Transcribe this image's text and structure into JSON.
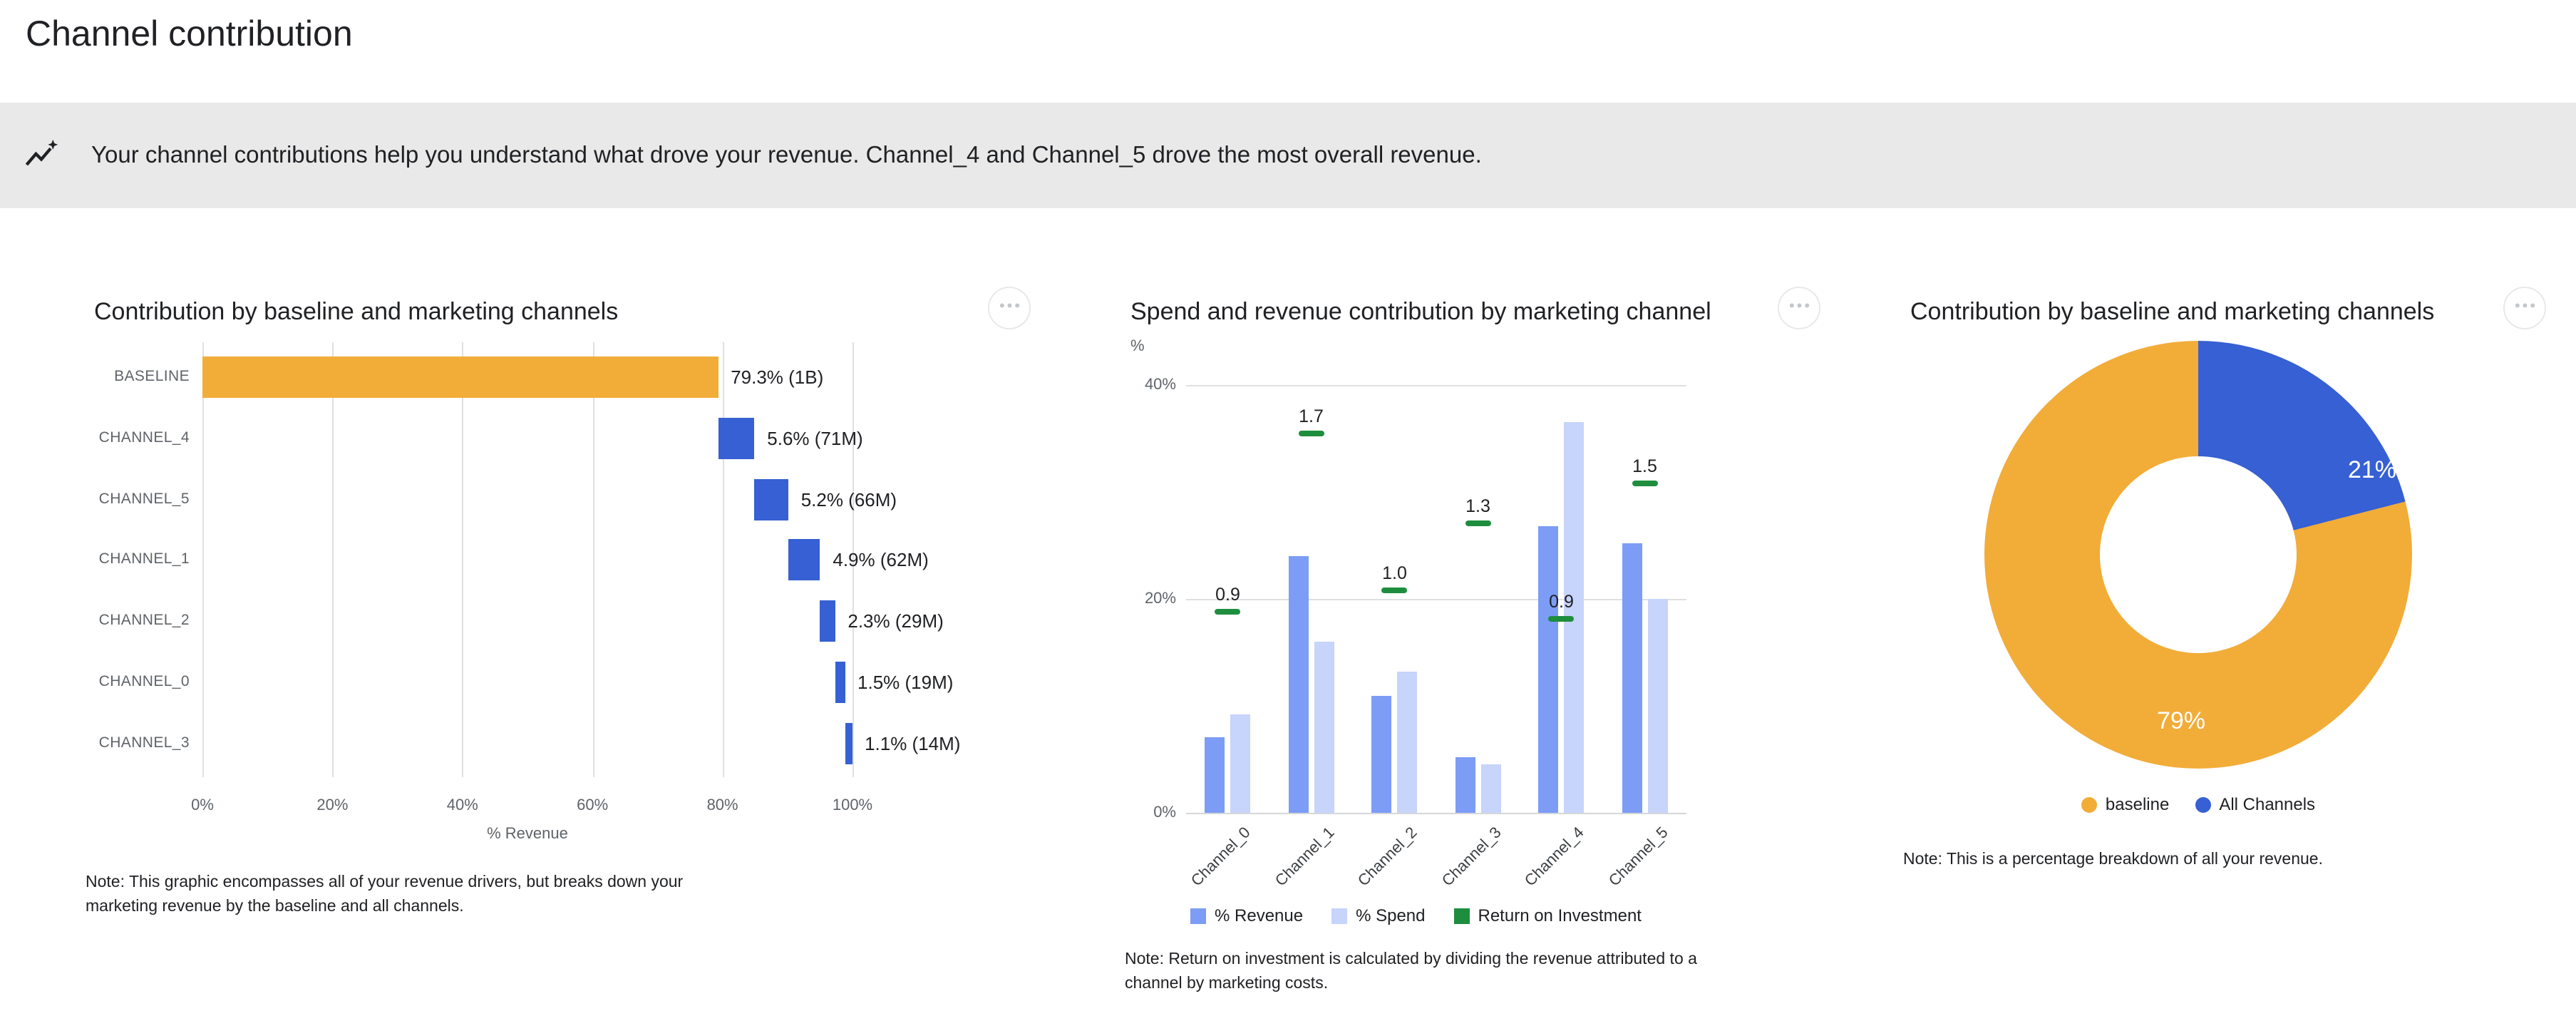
{
  "page": {
    "title": "Channel contribution"
  },
  "banner": {
    "icon": "insights-icon",
    "text": "Your channel contributions help you understand what drove your revenue. Channel_4 and Channel_5 drove the most overall revenue."
  },
  "ui": {
    "menu_icon": "more-options-icon",
    "menu_glyph": "•••"
  },
  "colors": {
    "baseline_orange": "#F2AC38",
    "channel_blue": "#3660D3",
    "revenue_blue": "#7C9CF6",
    "spend_blue": "#C7D4FB",
    "roi_green": "#1E8E3E",
    "banner_bg": "#E9E9E9",
    "text_primary": "#202124",
    "text_secondary": "#5F6368",
    "gridline": "#E0E0E0"
  },
  "chart_data": [
    {
      "type": "bar",
      "variant": "horizontal-waterfall",
      "title": "Contribution by baseline and marketing channels",
      "xlabel": "% Revenue",
      "xlim": [
        0,
        100
      ],
      "x_ticks": [
        "0%",
        "20%",
        "40%",
        "60%",
        "80%",
        "100%"
      ],
      "grid": true,
      "rows": [
        {
          "category": "BASELINE",
          "start": 0,
          "end": 79.3,
          "value_label": "79.3% (1B)",
          "color_key": "baseline_orange"
        },
        {
          "category": "CHANNEL_4",
          "start": 79.3,
          "end": 84.9,
          "value_label": "5.6% (71M)",
          "color_key": "channel_blue"
        },
        {
          "category": "CHANNEL_5",
          "start": 84.9,
          "end": 90.1,
          "value_label": "5.2% (66M)",
          "color_key": "channel_blue"
        },
        {
          "category": "CHANNEL_1",
          "start": 90.1,
          "end": 95.0,
          "value_label": "4.9% (62M)",
          "color_key": "channel_blue"
        },
        {
          "category": "CHANNEL_2",
          "start": 95.0,
          "end": 97.3,
          "value_label": "2.3% (29M)",
          "color_key": "channel_blue"
        },
        {
          "category": "CHANNEL_0",
          "start": 97.3,
          "end": 98.8,
          "value_label": "1.5% (19M)",
          "color_key": "channel_blue"
        },
        {
          "category": "CHANNEL_3",
          "start": 98.8,
          "end": 99.9,
          "value_label": "1.1% (14M)",
          "color_key": "channel_blue"
        }
      ],
      "note": "Note: This graphic encompasses all of your revenue drivers, but breaks down your\nmarketing revenue by the baseline and all channels."
    },
    {
      "type": "bar",
      "variant": "grouped-columns-with-roi-markers",
      "title": "Spend and revenue contribution by marketing channel",
      "ylabel": "%",
      "ylim": [
        0,
        44
      ],
      "y_ticks": [
        {
          "label": "0%",
          "value": 0
        },
        {
          "label": "20%",
          "value": 20
        },
        {
          "label": "40%",
          "value": 40
        }
      ],
      "categories": [
        "Channel_0",
        "Channel_1",
        "Channel_2",
        "Channel_3",
        "Channel_4",
        "Channel_5"
      ],
      "series": [
        {
          "name": "% Revenue",
          "color_key": "revenue_blue",
          "values": [
            7.1,
            24.0,
            10.9,
            5.2,
            26.8,
            25.2
          ]
        },
        {
          "name": "% Spend",
          "color_key": "spend_blue",
          "values": [
            9.2,
            16.0,
            13.2,
            4.6,
            36.5,
            20.0
          ]
        },
        {
          "name": "Return on Investment",
          "color_key": "roi_green",
          "values": [
            0.9,
            1.7,
            1.0,
            1.3,
            0.9,
            1.5
          ],
          "labels": [
            "0.9",
            "1.7",
            "1.0",
            "1.3",
            "0.9",
            "1.5"
          ],
          "marker_pct": [
            18.8,
            35.5,
            20.8,
            27.1,
            18.2,
            30.8
          ]
        }
      ],
      "legend": [
        {
          "label": "% Revenue",
          "color_key": "revenue_blue"
        },
        {
          "label": "% Spend",
          "color_key": "spend_blue"
        },
        {
          "label": "Return on Investment",
          "color_key": "roi_green"
        }
      ],
      "note": "Note: Return on investment is calculated by dividing the revenue attributed to a\nchannel by marketing costs."
    },
    {
      "type": "pie",
      "variant": "donut",
      "title": "Contribution by baseline and marketing channels",
      "slices": [
        {
          "label": "All Channels",
          "value": 21,
          "display": "21%",
          "color_key": "channel_blue"
        },
        {
          "label": "baseline",
          "value": 79,
          "display": "79%",
          "color_key": "baseline_orange"
        }
      ],
      "legend": [
        {
          "label": "baseline",
          "color_key": "baseline_orange"
        },
        {
          "label": "All Channels",
          "color_key": "channel_blue"
        }
      ],
      "note": "Note: This is a percentage breakdown of all your revenue."
    }
  ]
}
